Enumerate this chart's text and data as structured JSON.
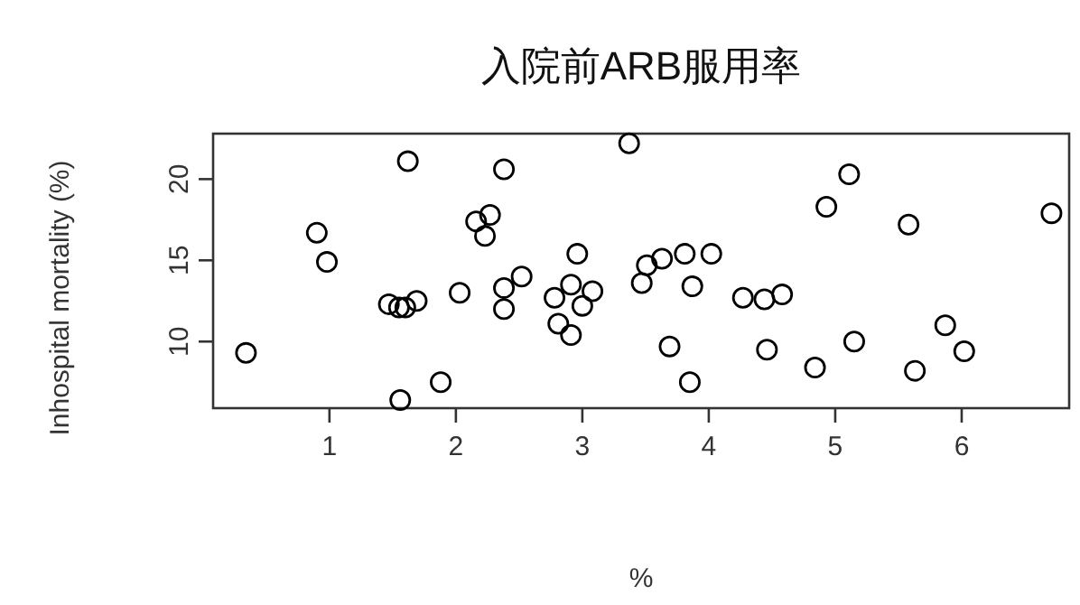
{
  "chart_data": {
    "type": "scatter",
    "title": "入院前ARB服用率",
    "xlabel": "%",
    "ylabel": "Inhospital mortality (%)",
    "marker": "circle",
    "grid": false,
    "color": "#000000",
    "xlim": [
      0.08,
      6.85
    ],
    "ylim": [
      5.9,
      22.8
    ],
    "xticks": [
      1,
      2,
      3,
      4,
      5,
      6
    ],
    "yticks": [
      10,
      15,
      20
    ],
    "x": [
      0.34,
      0.9,
      0.98,
      1.47,
      1.55,
      1.6,
      1.69,
      1.62,
      1.56,
      1.88,
      2.03,
      2.16,
      2.27,
      2.23,
      2.38,
      2.38,
      2.38,
      2.52,
      2.78,
      2.81,
      2.91,
      2.91,
      2.96,
      3.0,
      3.08,
      3.37,
      3.51,
      3.47,
      3.63,
      3.81,
      4.02,
      3.87,
      3.69,
      3.85,
      4.27,
      4.44,
      4.58,
      4.46,
      4.84,
      4.93,
      5.11,
      5.15,
      5.58,
      5.63,
      5.87,
      6.02,
      6.71
    ],
    "values": [
      9.3,
      16.7,
      14.9,
      12.3,
      12.1,
      12.1,
      12.5,
      21.1,
      6.4,
      7.5,
      13.0,
      17.4,
      17.8,
      16.5,
      20.6,
      13.3,
      12.0,
      14.0,
      12.7,
      11.1,
      10.4,
      13.5,
      15.4,
      12.2,
      13.1,
      22.2,
      14.7,
      13.6,
      15.1,
      15.4,
      15.4,
      13.4,
      9.7,
      7.5,
      12.7,
      12.6,
      12.9,
      9.5,
      8.4,
      18.3,
      20.3,
      10.0,
      17.2,
      8.2,
      11.0,
      9.4,
      17.9
    ]
  }
}
